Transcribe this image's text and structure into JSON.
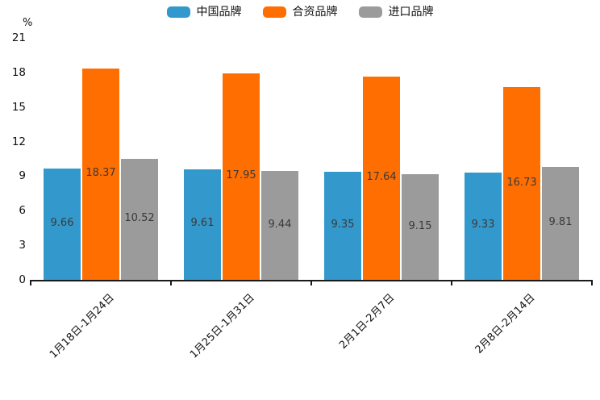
{
  "chart_data": {
    "type": "bar",
    "title": "",
    "unit_label": "%",
    "categories": [
      "1月18日-1月24日",
      "1月25日-1月31日",
      "2月1日-2月7日",
      "2月8日-2月14日"
    ],
    "series": [
      {
        "name": "中国品牌",
        "color": "#3399CC",
        "values": [
          9.66,
          9.61,
          9.35,
          9.33
        ]
      },
      {
        "name": "合资品牌",
        "color": "#FF6E00",
        "values": [
          18.37,
          17.95,
          17.64,
          16.73
        ]
      },
      {
        "name": "进口品牌",
        "color": "#9B9B9B",
        "values": [
          10.52,
          9.44,
          9.15,
          9.81
        ]
      }
    ],
    "ylim": [
      0,
      21
    ],
    "yticks": [
      0,
      3,
      6,
      9,
      12,
      15,
      18,
      21
    ],
    "xlabel": "",
    "ylabel": "%",
    "legend_position": "top",
    "grid": false,
    "value_labels": true,
    "axis_color": "#1a1a1a",
    "value_label_color": "#3a3a3a"
  }
}
